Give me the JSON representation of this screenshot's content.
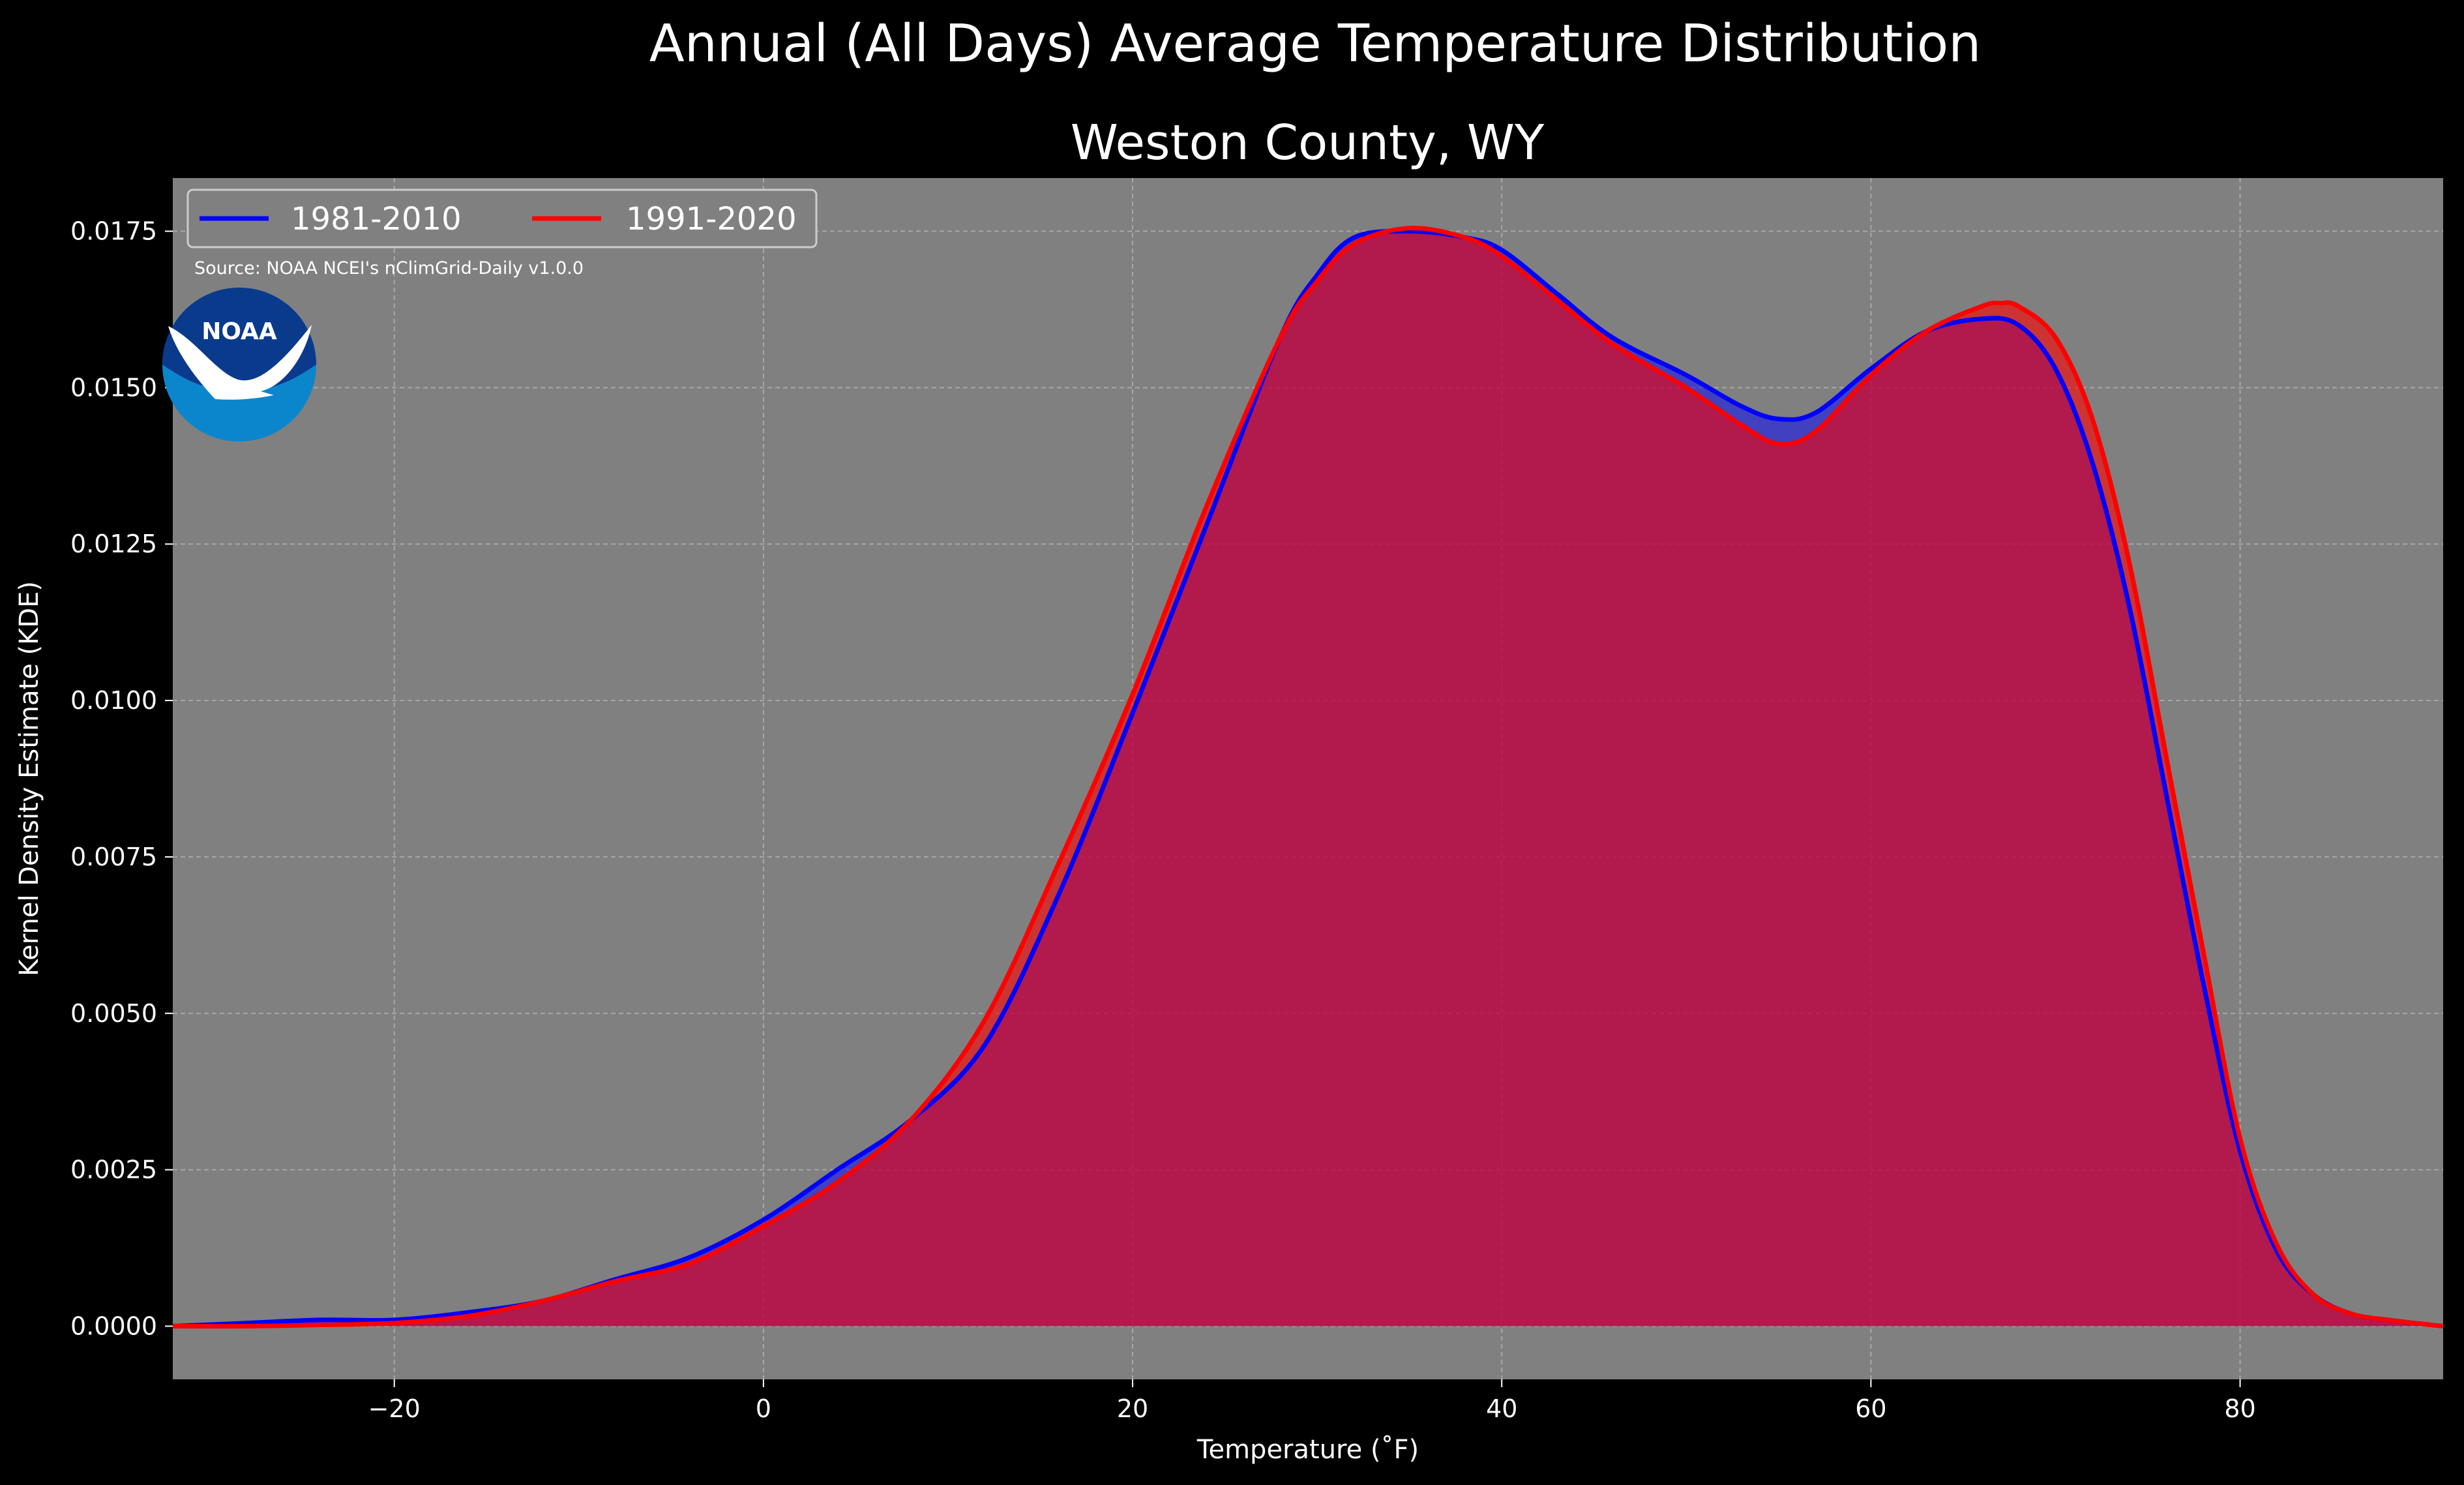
{
  "chart_data": {
    "type": "area",
    "suptitle": "Annual (All Days) Average Temperature Distribution",
    "title": "Weston County, WY",
    "xlabel": "Temperature (˚F)",
    "ylabel": "Kernel Density Estimate (KDE)",
    "xlim": [
      -32,
      91
    ],
    "ylim": [
      -0.00085,
      0.01835
    ],
    "xticks": [
      -20,
      0,
      20,
      40,
      60,
      80
    ],
    "xtick_labels": [
      "−20",
      "0",
      "20",
      "40",
      "60",
      "80"
    ],
    "yticks": [
      0.0,
      0.0025,
      0.005,
      0.0075,
      0.01,
      0.0125,
      0.015,
      0.0175
    ],
    "ytick_labels": [
      "0.0000",
      "0.0025",
      "0.0050",
      "0.0075",
      "0.0100",
      "0.0125",
      "0.0150",
      "0.0175"
    ],
    "grid": true,
    "legend_position": "upper-left",
    "source_note": "Source: NOAA NCEI's nClimGrid-Daily v1.0.0",
    "logo_text": "NOAA",
    "colors": {
      "background": "#000000",
      "axes_face": "#808080",
      "series_1": "#0000ff",
      "series_2": "#ff0000",
      "fill_overlap": "#9e1f5d",
      "noaa_dark": "#0a3a8c",
      "noaa_light": "#0b86cc"
    },
    "series": [
      {
        "name": "1981-2010",
        "x": [
          -32,
          -28,
          -24,
          -20,
          -16,
          -12,
          -8,
          -4,
          0,
          4,
          8,
          12,
          16,
          20,
          24,
          28,
          30,
          32,
          35,
          38,
          40,
          43,
          46,
          50,
          53,
          55,
          57,
          60,
          63,
          66,
          68,
          70,
          72,
          74,
          76,
          78,
          80,
          82,
          84,
          86,
          88,
          91
        ],
        "y": [
          0.0,
          5e-05,
          0.0001,
          0.0001,
          0.00022,
          0.0004,
          0.00075,
          0.0011,
          0.0017,
          0.0025,
          0.0033,
          0.0045,
          0.0069,
          0.0098,
          0.0128,
          0.0158,
          0.0168,
          0.0174,
          0.0175,
          0.0174,
          0.0172,
          0.0165,
          0.0158,
          0.0152,
          0.0147,
          0.0145,
          0.0146,
          0.0153,
          0.0159,
          0.0161,
          0.016,
          0.0153,
          0.0138,
          0.0115,
          0.0085,
          0.0055,
          0.0028,
          0.0012,
          0.0005,
          0.0002,
          0.0001,
          0.0
        ]
      },
      {
        "name": "1991-2020",
        "x": [
          -32,
          -28,
          -24,
          -20,
          -16,
          -12,
          -8,
          -4,
          0,
          4,
          8,
          12,
          16,
          20,
          24,
          28,
          30,
          32,
          35,
          38,
          40,
          43,
          46,
          50,
          53,
          55,
          57,
          60,
          63,
          66,
          67,
          68,
          70,
          72,
          74,
          76,
          78,
          80,
          82,
          84,
          86,
          88,
          91
        ],
        "y": [
          0.0,
          0.0,
          2e-05,
          5e-05,
          0.00016,
          0.0004,
          0.00072,
          0.001,
          0.0016,
          0.0023,
          0.0033,
          0.0049,
          0.0074,
          0.0101,
          0.0131,
          0.0158,
          0.0167,
          0.0173,
          0.01755,
          0.0174,
          0.0171,
          0.0164,
          0.0157,
          0.015,
          0.0144,
          0.0141,
          0.0143,
          0.0152,
          0.0159,
          0.0163,
          0.01635,
          0.0163,
          0.0158,
          0.0145,
          0.0122,
          0.0091,
          0.006,
          0.003,
          0.0013,
          0.0005,
          0.0002,
          0.0001,
          0.0
        ]
      }
    ]
  }
}
